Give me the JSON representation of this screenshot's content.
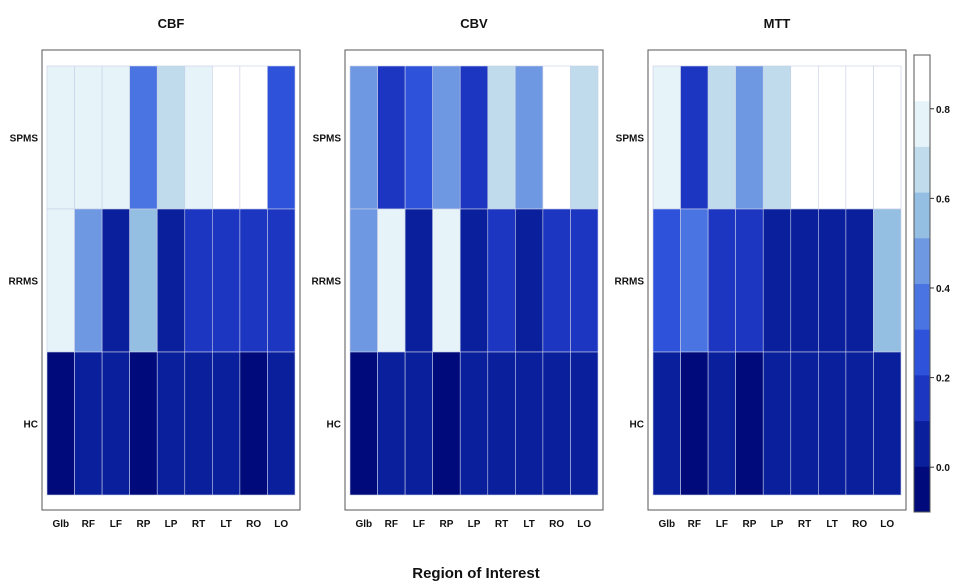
{
  "chart_data": {
    "type": "heatmap",
    "xlabel": "Region of Interest",
    "rows": [
      "SPMS",
      "RRMS",
      "HC"
    ],
    "columns": [
      "Glb",
      "RF",
      "LF",
      "RP",
      "LP",
      "RT",
      "LT",
      "RO",
      "LO"
    ],
    "colorbar": {
      "range": [
        -0.1,
        0.92
      ],
      "ticks": [
        0.0,
        0.2,
        0.4,
        0.6,
        0.8
      ],
      "tick_labels": [
        "0.0",
        "0.2",
        "0.4",
        "0.6",
        "0.8"
      ],
      "colors": [
        "#000a7a",
        "#0a1f9c",
        "#1c36c2",
        "#2f52da",
        "#4a74e2",
        "#6f98e3",
        "#95bfe2",
        "#c0dcec",
        "#e6f3f8",
        "#ffffff"
      ]
    },
    "panels": [
      {
        "title": "CBF",
        "values": [
          [
            0.8,
            0.73,
            0.73,
            0.33,
            0.65,
            0.73,
            0.86,
            0.95,
            0.3
          ],
          [
            0.75,
            0.5,
            0.06,
            0.58,
            0.1,
            0.15,
            0.12,
            0.14,
            0.15
          ],
          [
            0.0,
            0.01,
            0.02,
            -0.02,
            0.02,
            0.01,
            0.03,
            0.0,
            0.02
          ]
        ]
      },
      {
        "title": "CBV",
        "values": [
          [
            0.5,
            0.2,
            0.28,
            0.48,
            0.18,
            0.68,
            0.5,
            0.95,
            0.63
          ],
          [
            0.43,
            0.73,
            0.06,
            0.77,
            0.1,
            0.13,
            0.05,
            0.18,
            0.16
          ],
          [
            0.0,
            0.02,
            0.02,
            0.0,
            0.02,
            0.01,
            0.03,
            0.04,
            0.04
          ]
        ]
      },
      {
        "title": "MTT",
        "values": [
          [
            0.8,
            0.2,
            0.7,
            0.42,
            0.64,
            0.84,
            0.86,
            0.95,
            0.82
          ],
          [
            0.22,
            0.38,
            0.12,
            0.19,
            0.09,
            0.04,
            0.09,
            0.08,
            0.55
          ],
          [
            0.02,
            -0.02,
            0.02,
            0.0,
            0.01,
            0.02,
            0.02,
            0.02,
            0.02
          ]
        ]
      }
    ]
  }
}
